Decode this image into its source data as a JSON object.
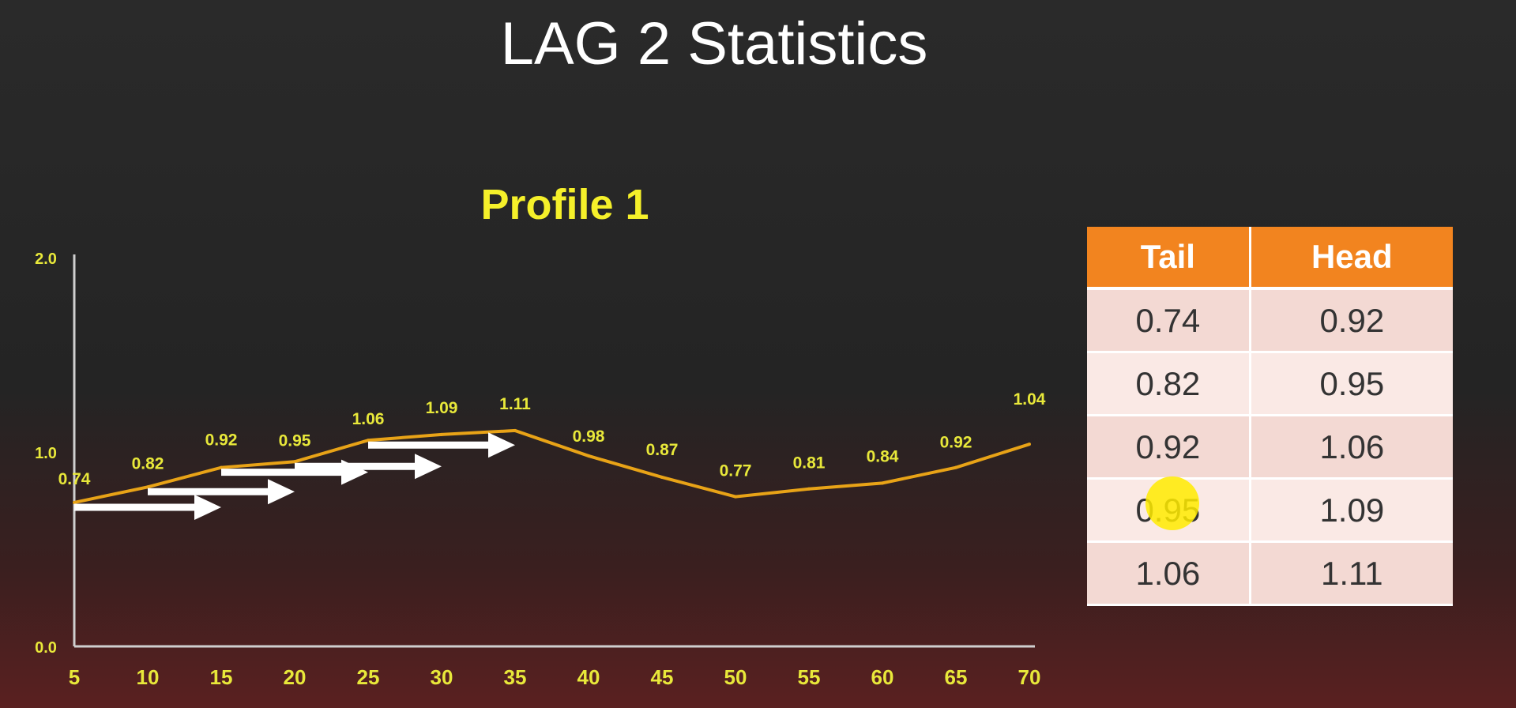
{
  "slide": {
    "title": "LAG 2 Statistics"
  },
  "chart_data": {
    "type": "line",
    "title": "Profile 1",
    "x": [
      5,
      10,
      15,
      20,
      25,
      30,
      35,
      40,
      45,
      50,
      55,
      60,
      65,
      70
    ],
    "series": [
      {
        "values": [
          0.74,
          0.82,
          0.92,
          0.95,
          1.06,
          1.09,
          1.11,
          0.98,
          0.87,
          0.77,
          0.81,
          0.84,
          0.92,
          1.04
        ]
      }
    ],
    "data_labels": [
      "0.74",
      "0.82",
      "0.92",
      "0.95",
      "1.06",
      "1.09",
      "1.11",
      "0.98",
      "0.87",
      "0.77",
      "0.81",
      "0.84",
      "0.92",
      "1.04"
    ],
    "x_ticks": [
      "5",
      "10",
      "15",
      "20",
      "25",
      "30",
      "35",
      "40",
      "45",
      "50",
      "55",
      "60",
      "65",
      "70"
    ],
    "y_ticks": [
      "0.0",
      "1.0",
      "2.0"
    ],
    "ylim": [
      0,
      2
    ],
    "xlim": [
      5,
      70
    ],
    "grid": false,
    "line_color": "#e8a317",
    "label_color": "#e8e83a",
    "lag_arrows": [
      {
        "from_x": 5,
        "to_x": 15,
        "level": 0.74
      },
      {
        "from_x": 10,
        "to_x": 20,
        "level": 0.82
      },
      {
        "from_x": 15,
        "to_x": 25,
        "level": 0.92
      },
      {
        "from_x": 20,
        "to_x": 30,
        "level": 0.95
      },
      {
        "from_x": 25,
        "to_x": 35,
        "level": 1.06
      }
    ]
  },
  "table": {
    "headers": [
      "Tail",
      "Head"
    ],
    "rows": [
      [
        "0.74",
        "0.92"
      ],
      [
        "0.82",
        "0.95"
      ],
      [
        "0.92",
        "1.06"
      ],
      [
        "0.95",
        "1.09"
      ],
      [
        "1.06",
        "1.11"
      ]
    ],
    "header_color": "#f2841f"
  }
}
